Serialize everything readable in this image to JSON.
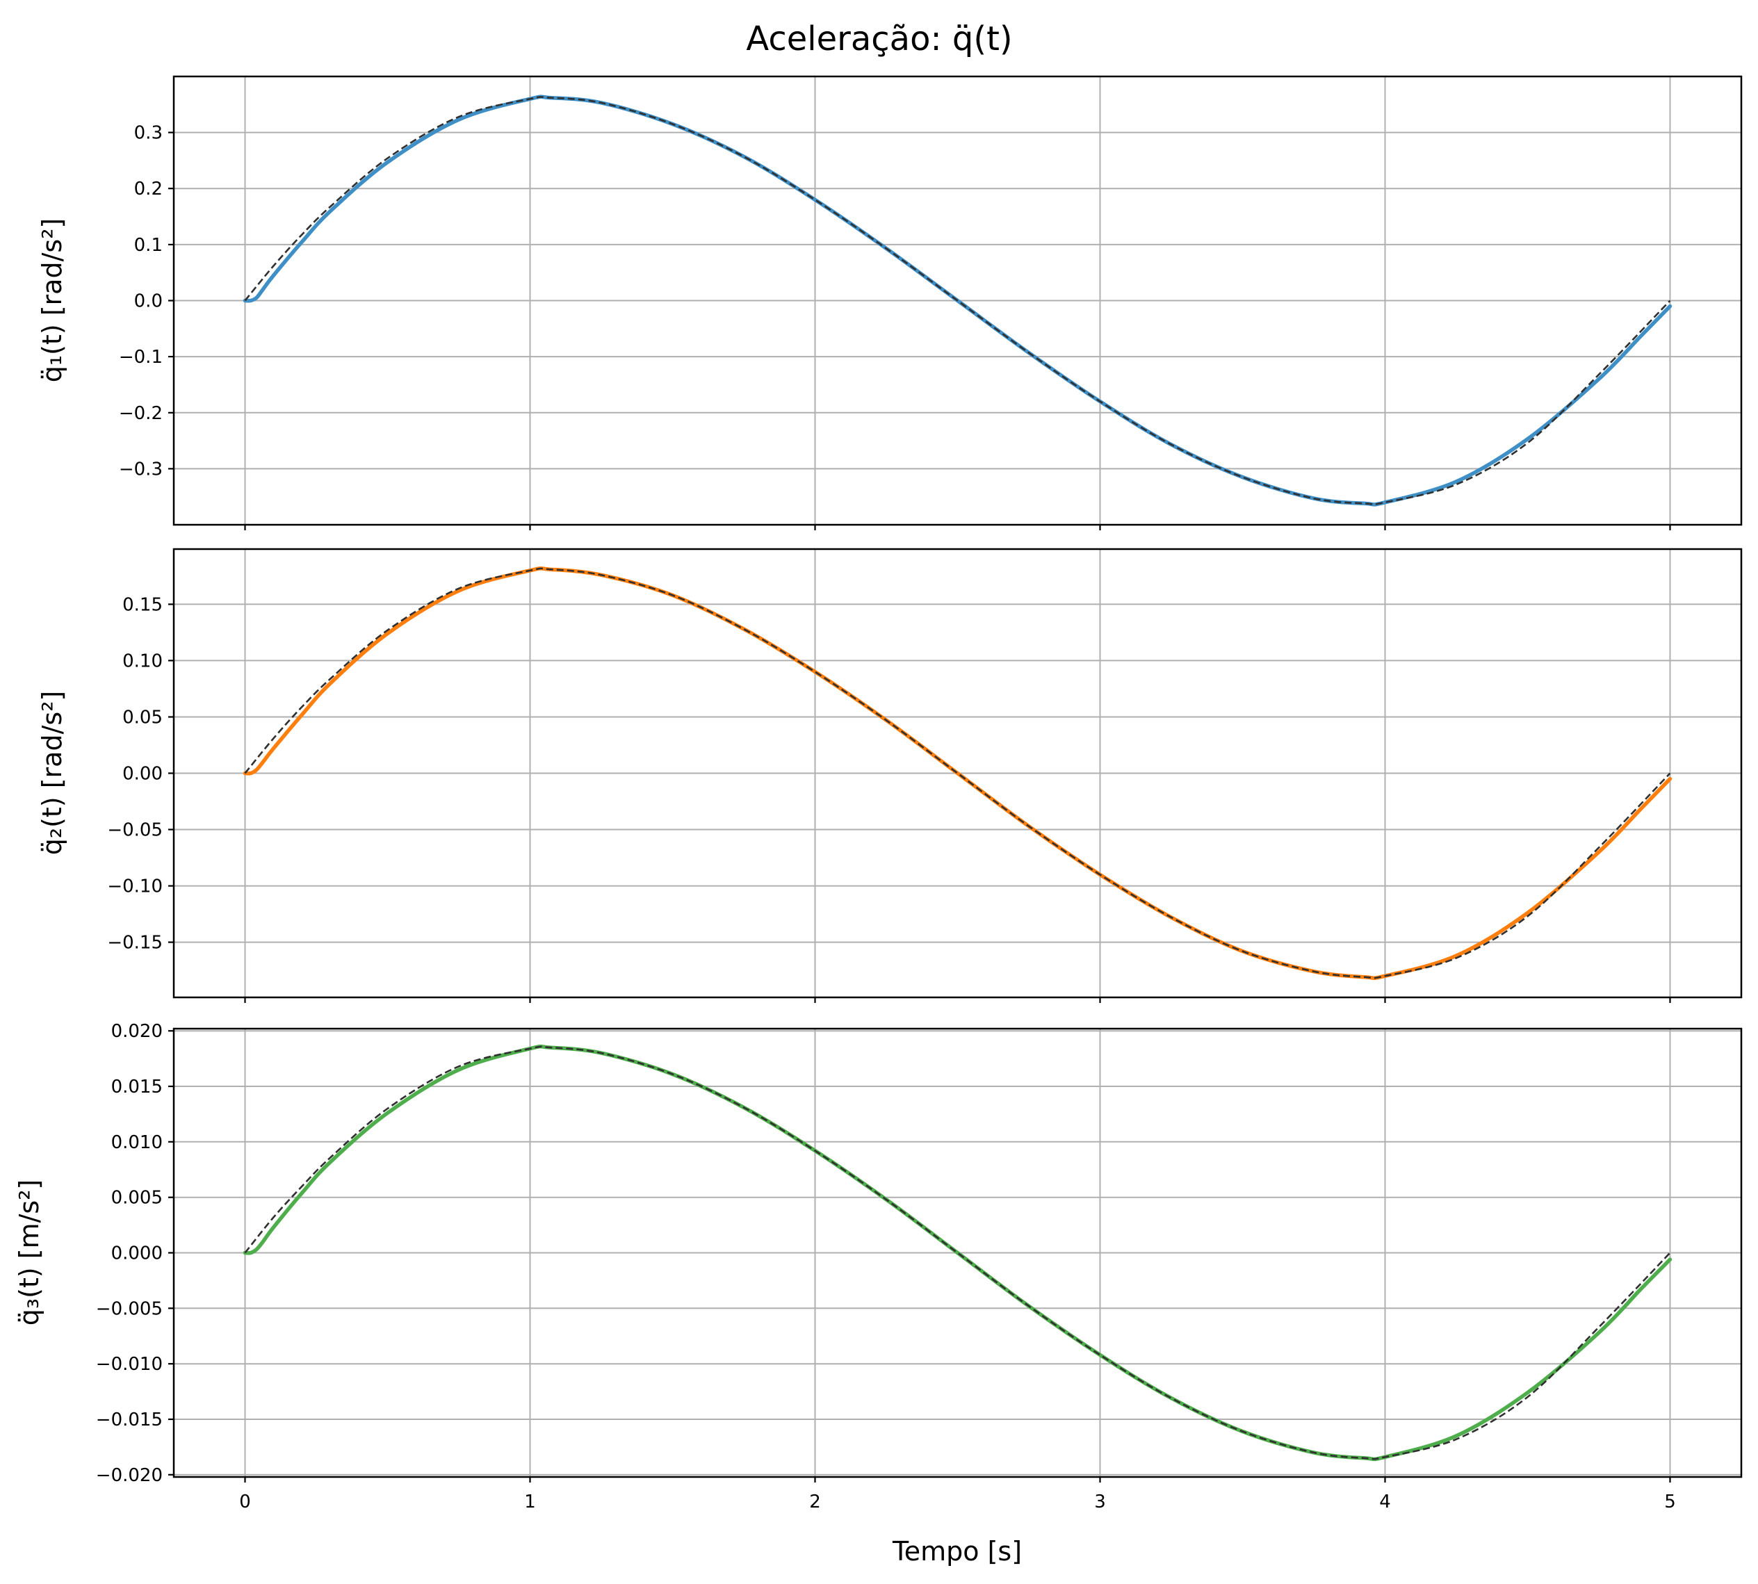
{
  "figure": {
    "title": "Aceleração: q̈(t)",
    "xlabel": "Tempo [s]",
    "reference_style": "black dashed"
  },
  "chart_data": [
    {
      "type": "line",
      "title": "",
      "ylabel": "q̈₁(t) [rad/s²]",
      "xlabel": "",
      "xlim": [
        -0.25,
        5.25
      ],
      "ylim": [
        -0.4,
        0.4
      ],
      "xticks": [
        0,
        1,
        2,
        3,
        4,
        5
      ],
      "xtick_labels": [],
      "yticks": [
        0.3,
        0.2,
        0.1,
        0.0,
        -0.1,
        -0.2,
        -0.3
      ],
      "ytick_labels": [
        "0.3",
        "0.2",
        "0.1",
        "0.0",
        "−0.1",
        "−0.2",
        "−0.3"
      ],
      "grid": true,
      "amplitude": 0.362,
      "series": [
        {
          "role": "actual",
          "color": "#3f8fc7",
          "x": [
            0,
            0.02,
            0.04,
            0.06,
            0.1,
            0.2,
            0.3,
            0.5,
            0.75,
            1.0,
            1.07,
            1.25,
            1.5,
            1.75,
            2.0,
            2.25,
            2.5,
            2.75,
            3.0,
            3.25,
            3.5,
            3.75,
            3.93,
            4.0,
            4.25,
            4.5,
            4.75,
            4.9,
            5.0
          ],
          "values": [
            0,
            0,
            0.005,
            0.018,
            0.045,
            0.105,
            0.16,
            0.247,
            0.323,
            0.36,
            0.362,
            0.353,
            0.315,
            0.257,
            0.18,
            0.093,
            0.0,
            -0.093,
            -0.18,
            -0.257,
            -0.315,
            -0.353,
            -0.362,
            -0.36,
            -0.323,
            -0.247,
            -0.14,
            -0.062,
            -0.01
          ]
        },
        {
          "role": "reference",
          "color": "#303030",
          "x": [
            0,
            0.1,
            0.2,
            0.3,
            0.5,
            0.75,
            1.0,
            1.07,
            1.25,
            1.5,
            1.75,
            2.0,
            2.25,
            2.5,
            2.75,
            3.0,
            3.25,
            3.5,
            3.75,
            3.93,
            4.0,
            4.25,
            4.5,
            4.75,
            5.0
          ],
          "values": [
            0,
            0.062,
            0.118,
            0.168,
            0.254,
            0.328,
            0.36,
            0.362,
            0.353,
            0.315,
            0.257,
            0.18,
            0.093,
            0.0,
            -0.093,
            -0.18,
            -0.257,
            -0.315,
            -0.353,
            -0.362,
            -0.36,
            -0.328,
            -0.254,
            -0.132,
            0.0
          ]
        }
      ]
    },
    {
      "type": "line",
      "title": "",
      "ylabel": "q̈₂(t) [rad/s²]",
      "xlabel": "",
      "xlim": [
        -0.25,
        5.25
      ],
      "ylim": [
        -0.199,
        0.199
      ],
      "xticks": [
        0,
        1,
        2,
        3,
        4,
        5
      ],
      "xtick_labels": [],
      "yticks": [
        0.15,
        0.1,
        0.05,
        0.0,
        -0.05,
        -0.1,
        -0.15
      ],
      "ytick_labels": [
        "0.15",
        "0.10",
        "0.05",
        "0.00",
        "−0.05",
        "−0.10",
        "−0.15"
      ],
      "grid": true,
      "amplitude": 0.181,
      "series": [
        {
          "role": "actual",
          "color": "#ff7f0e",
          "x": [
            0,
            0.02,
            0.04,
            0.06,
            0.1,
            0.2,
            0.3,
            0.5,
            0.75,
            1.0,
            1.07,
            1.25,
            1.5,
            1.75,
            2.0,
            2.25,
            2.5,
            2.75,
            3.0,
            3.25,
            3.5,
            3.75,
            3.93,
            4.0,
            4.25,
            4.5,
            4.75,
            4.9,
            5.0
          ],
          "values": [
            0,
            0,
            0.003,
            0.009,
            0.022,
            0.052,
            0.08,
            0.124,
            0.162,
            0.18,
            0.181,
            0.176,
            0.158,
            0.128,
            0.09,
            0.047,
            0.0,
            -0.047,
            -0.09,
            -0.128,
            -0.158,
            -0.176,
            -0.181,
            -0.18,
            -0.162,
            -0.124,
            -0.07,
            -0.031,
            -0.005
          ]
        },
        {
          "role": "reference",
          "color": "#303030",
          "x": [
            0,
            0.1,
            0.2,
            0.3,
            0.5,
            0.75,
            1.0,
            1.07,
            1.25,
            1.5,
            1.75,
            2.0,
            2.25,
            2.5,
            2.75,
            3.0,
            3.25,
            3.5,
            3.75,
            3.93,
            4.0,
            4.25,
            4.5,
            4.75,
            5.0
          ],
          "values": [
            0,
            0.031,
            0.059,
            0.084,
            0.127,
            0.164,
            0.18,
            0.181,
            0.176,
            0.158,
            0.128,
            0.09,
            0.047,
            0.0,
            -0.047,
            -0.09,
            -0.128,
            -0.158,
            -0.176,
            -0.181,
            -0.18,
            -0.164,
            -0.127,
            -0.066,
            0.0
          ]
        }
      ]
    },
    {
      "type": "line",
      "title": "",
      "ylabel": "q̈₃(t) [m/s²]",
      "xlabel": "Tempo [s]",
      "xlim": [
        -0.25,
        5.25
      ],
      "ylim": [
        -0.0202,
        0.0202
      ],
      "xticks": [
        0,
        1,
        2,
        3,
        4,
        5
      ],
      "xtick_labels": [
        "0",
        "1",
        "2",
        "3",
        "4",
        "5"
      ],
      "yticks": [
        0.02,
        0.015,
        0.01,
        0.005,
        0.0,
        -0.005,
        -0.01,
        -0.015,
        -0.02
      ],
      "ytick_labels": [
        "0.020",
        "0.015",
        "0.010",
        "0.005",
        "0.000",
        "−0.005",
        "−0.010",
        "−0.015",
        "−0.020"
      ],
      "grid": true,
      "amplitude": 0.0185,
      "series": [
        {
          "role": "actual",
          "color": "#4fae4c",
          "x": [
            0,
            0.02,
            0.04,
            0.06,
            0.1,
            0.2,
            0.3,
            0.5,
            0.75,
            1.0,
            1.07,
            1.25,
            1.5,
            1.75,
            2.0,
            2.25,
            2.5,
            2.75,
            3.0,
            3.25,
            3.5,
            3.75,
            3.93,
            4.0,
            4.25,
            4.5,
            4.75,
            4.9,
            5.0
          ],
          "values": [
            0,
            0,
            0.0003,
            0.0009,
            0.0023,
            0.0054,
            0.0082,
            0.0126,
            0.0165,
            0.0184,
            0.0185,
            0.018,
            0.0161,
            0.0131,
            0.0092,
            0.0048,
            0.0,
            -0.0048,
            -0.0092,
            -0.0131,
            -0.0161,
            -0.018,
            -0.0185,
            -0.0184,
            -0.0165,
            -0.0126,
            -0.0072,
            -0.0032,
            -0.0006
          ]
        },
        {
          "role": "reference",
          "color": "#303030",
          "x": [
            0,
            0.1,
            0.2,
            0.3,
            0.5,
            0.75,
            1.0,
            1.07,
            1.25,
            1.5,
            1.75,
            2.0,
            2.25,
            2.5,
            2.75,
            3.0,
            3.25,
            3.5,
            3.75,
            3.93,
            4.0,
            4.25,
            4.5,
            4.75,
            5.0
          ],
          "values": [
            0,
            0.0032,
            0.006,
            0.0086,
            0.013,
            0.0168,
            0.0184,
            0.0185,
            0.018,
            0.0161,
            0.0131,
            0.0092,
            0.0048,
            0.0,
            -0.0048,
            -0.0092,
            -0.0131,
            -0.0161,
            -0.018,
            -0.0185,
            -0.0184,
            -0.0168,
            -0.013,
            -0.0067,
            0.0
          ]
        }
      ]
    }
  ]
}
